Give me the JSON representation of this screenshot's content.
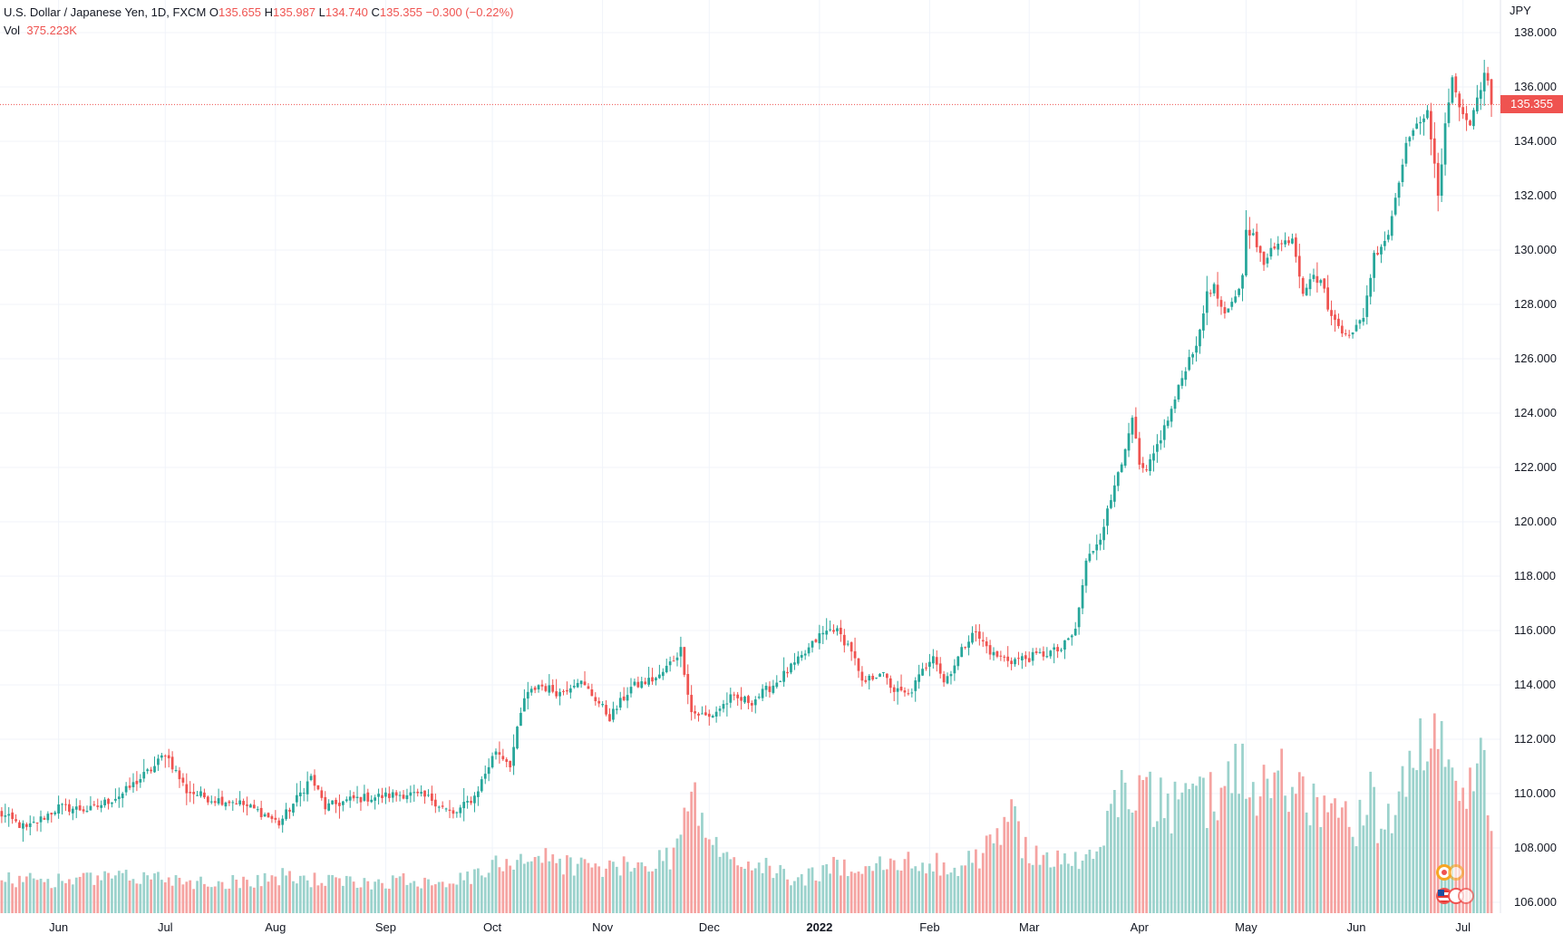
{
  "legend": {
    "symbol": "U.S. Dollar / Japanese Yen, 1D, FXCM",
    "o_label": "O",
    "o_value": "135.655",
    "h_label": "H",
    "h_value": "135.987",
    "l_label": "L",
    "l_value": "134.740",
    "c_label": "C",
    "c_value": "135.355",
    "change": "−0.300 (−0.22%)",
    "vol_label": "Vol",
    "vol_value": "375.223K"
  },
  "price_badge": "135.355",
  "colors": {
    "up": "#26a69a",
    "down": "#ef5350",
    "vol_up": "#9bd2cc",
    "vol_down": "#f5a3a1",
    "grid": "#f0f3fa"
  },
  "chart_data": {
    "type": "candlestick",
    "title": "U.S. Dollar / Japanese Yen, 1D, FXCM",
    "currency": "JPY",
    "ylim": [
      105.6,
      139.2
    ],
    "y_ticks": [
      "106.000",
      "108.000",
      "110.000",
      "112.000",
      "114.000",
      "116.000",
      "118.000",
      "120.000",
      "122.000",
      "124.000",
      "126.000",
      "128.000",
      "130.000",
      "132.000",
      "134.000",
      "136.000",
      "138.000"
    ],
    "x_ticks": [
      {
        "label": "Jun",
        "day": 17
      },
      {
        "label": "Jul",
        "day": 47
      },
      {
        "label": "Aug",
        "day": 78
      },
      {
        "label": "Sep",
        "day": 109
      },
      {
        "label": "Oct",
        "day": 139
      },
      {
        "label": "Nov",
        "day": 170
      },
      {
        "label": "Dec",
        "day": 200
      },
      {
        "label": "2022",
        "day": 231
      },
      {
        "label": "Feb",
        "day": 262
      },
      {
        "label": "Mar",
        "day": 290
      },
      {
        "label": "Apr",
        "day": 321
      },
      {
        "label": "May",
        "day": 351
      },
      {
        "label": "Jun",
        "day": 382
      },
      {
        "label": "Jul",
        "day": 412
      }
    ],
    "last_price": 135.355,
    "anchors": [
      [
        0,
        109.3
      ],
      [
        8,
        108.7
      ],
      [
        17,
        109.5
      ],
      [
        26,
        109.4
      ],
      [
        35,
        110.0
      ],
      [
        44,
        111.0
      ],
      [
        47,
        111.5
      ],
      [
        53,
        110.1
      ],
      [
        60,
        109.8
      ],
      [
        67,
        109.7
      ],
      [
        74,
        109.3
      ],
      [
        79,
        108.9
      ],
      [
        84,
        109.8
      ],
      [
        88,
        110.6
      ],
      [
        92,
        109.5
      ],
      [
        100,
        109.8
      ],
      [
        108,
        109.9
      ],
      [
        115,
        110.0
      ],
      [
        122,
        109.8
      ],
      [
        128,
        109.2
      ],
      [
        134,
        109.9
      ],
      [
        140,
        111.6
      ],
      [
        144,
        111.1
      ],
      [
        148,
        113.5
      ],
      [
        152,
        114.0
      ],
      [
        158,
        113.7
      ],
      [
        163,
        114.2
      ],
      [
        168,
        113.5
      ],
      [
        172,
        112.8
      ],
      [
        178,
        113.9
      ],
      [
        186,
        114.3
      ],
      [
        192,
        115.3
      ],
      [
        195,
        113.0
      ],
      [
        200,
        112.8
      ],
      [
        206,
        113.5
      ],
      [
        212,
        113.4
      ],
      [
        218,
        114.0
      ],
      [
        226,
        115.0
      ],
      [
        231,
        115.8
      ],
      [
        235,
        116.1
      ],
      [
        240,
        115.3
      ],
      [
        243,
        114.0
      ],
      [
        248,
        114.5
      ],
      [
        252,
        113.8
      ],
      [
        256,
        113.6
      ],
      [
        260,
        114.5
      ],
      [
        263,
        115.2
      ],
      [
        266,
        114.1
      ],
      [
        270,
        115.0
      ],
      [
        274,
        116.0
      ],
      [
        280,
        115.1
      ],
      [
        285,
        114.9
      ],
      [
        290,
        115.0
      ],
      [
        296,
        115.2
      ],
      [
        299,
        115.3
      ],
      [
        303,
        116.0
      ],
      [
        306,
        118.5
      ],
      [
        310,
        119.5
      ],
      [
        313,
        120.8
      ],
      [
        315,
        122.0
      ],
      [
        317,
        122.5
      ],
      [
        319,
        123.8
      ],
      [
        321,
        122.0
      ],
      [
        323,
        121.8
      ],
      [
        326,
        122.8
      ],
      [
        330,
        124.1
      ],
      [
        334,
        125.7
      ],
      [
        338,
        126.9
      ],
      [
        340,
        128.5
      ],
      [
        342,
        128.6
      ],
      [
        345,
        127.5
      ],
      [
        347,
        128.0
      ],
      [
        350,
        129.0
      ],
      [
        351,
        130.9
      ],
      [
        353,
        130.5
      ],
      [
        356,
        129.4
      ],
      [
        358,
        130.2
      ],
      [
        361,
        130.2
      ],
      [
        364,
        130.5
      ],
      [
        367,
        128.5
      ],
      [
        369,
        129.0
      ],
      [
        372,
        128.9
      ],
      [
        375,
        127.5
      ],
      [
        378,
        127.1
      ],
      [
        381,
        126.9
      ],
      [
        384,
        127.6
      ],
      [
        387,
        129.8
      ],
      [
        391,
        130.6
      ],
      [
        395,
        133.3
      ],
      [
        397,
        134.3
      ],
      [
        400,
        134.6
      ],
      [
        402,
        135.3
      ],
      [
        405,
        131.9
      ],
      [
        407,
        134.5
      ],
      [
        409,
        136.5
      ],
      [
        411,
        135.2
      ],
      [
        414,
        134.6
      ],
      [
        416,
        135.6
      ],
      [
        418,
        136.5
      ],
      [
        420,
        135.7
      ]
    ],
    "volume_ylim": [
      0,
      140
    ],
    "volume_anchors": [
      [
        0,
        20
      ],
      [
        20,
        20
      ],
      [
        45,
        22
      ],
      [
        60,
        18
      ],
      [
        80,
        22
      ],
      [
        100,
        18
      ],
      [
        115,
        20
      ],
      [
        130,
        20
      ],
      [
        137,
        24
      ],
      [
        142,
        32
      ],
      [
        150,
        35
      ],
      [
        160,
        30
      ],
      [
        170,
        27
      ],
      [
        180,
        28
      ],
      [
        190,
        36
      ],
      [
        193,
        58
      ],
      [
        196,
        68
      ],
      [
        200,
        45
      ],
      [
        205,
        32
      ],
      [
        215,
        28
      ],
      [
        225,
        20
      ],
      [
        231,
        25
      ],
      [
        240,
        30
      ],
      [
        250,
        28
      ],
      [
        262,
        32
      ],
      [
        270,
        26
      ],
      [
        280,
        42
      ],
      [
        285,
        60
      ],
      [
        288,
        42
      ],
      [
        293,
        36
      ],
      [
        300,
        30
      ],
      [
        310,
        35
      ],
      [
        312,
        60
      ],
      [
        318,
        78
      ],
      [
        322,
        72
      ],
      [
        330,
        62
      ],
      [
        335,
        70
      ],
      [
        340,
        66
      ],
      [
        345,
        80
      ],
      [
        350,
        92
      ],
      [
        352,
        70
      ],
      [
        356,
        78
      ],
      [
        360,
        85
      ],
      [
        362,
        82
      ],
      [
        367,
        72
      ],
      [
        372,
        64
      ],
      [
        378,
        62
      ],
      [
        382,
        50
      ],
      [
        386,
        70
      ],
      [
        389,
        45
      ],
      [
        392,
        58
      ],
      [
        396,
        80
      ],
      [
        400,
        95
      ],
      [
        403,
        108
      ],
      [
        406,
        110
      ],
      [
        408,
        75
      ],
      [
        410,
        82
      ],
      [
        412,
        80
      ],
      [
        414,
        82
      ],
      [
        416,
        85
      ],
      [
        418,
        92
      ],
      [
        420,
        50
      ]
    ],
    "n_bars": 421,
    "last_volume": 375223
  }
}
